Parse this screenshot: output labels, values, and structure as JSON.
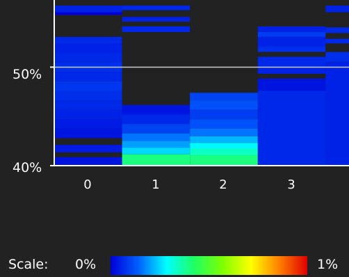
{
  "chart_data": {
    "type": "heatmap",
    "x_ticks": [
      "0",
      "1",
      "2",
      "3"
    ],
    "y_ticks": [
      "50%",
      "40%"
    ],
    "y_range": [
      39.6,
      56.5
    ],
    "reference_line": 50,
    "cells": [
      {
        "col": 0,
        "y0": 55.8,
        "y1": 56.5,
        "v": 0.05
      },
      {
        "col": 0,
        "y0": 55.5,
        "y1": 55.8,
        "v": 0.0
      },
      {
        "col": 0,
        "y0": 53.2,
        "y1": 55.5,
        "v": null
      },
      {
        "col": 0,
        "y0": 52.5,
        "y1": 53.2,
        "v": 0.06
      },
      {
        "col": 0,
        "y0": 51.5,
        "y1": 52.5,
        "v": 0.05
      },
      {
        "col": 0,
        "y0": 50.5,
        "y1": 51.5,
        "v": 0.06
      },
      {
        "col": 0,
        "y0": 49.5,
        "y1": 50.5,
        "v": 0.07
      },
      {
        "col": 0,
        "y0": 48.5,
        "y1": 49.5,
        "v": 0.06
      },
      {
        "col": 0,
        "y0": 47.5,
        "y1": 48.5,
        "v": 0.08
      },
      {
        "col": 0,
        "y0": 46.5,
        "y1": 47.5,
        "v": 0.07
      },
      {
        "col": 0,
        "y0": 45.5,
        "y1": 46.5,
        "v": 0.06
      },
      {
        "col": 0,
        "y0": 44.5,
        "y1": 45.5,
        "v": 0.05
      },
      {
        "col": 0,
        "y0": 43.5,
        "y1": 44.5,
        "v": 0.04
      },
      {
        "col": 0,
        "y0": 42.5,
        "y1": 43.5,
        "v": 0.03
      },
      {
        "col": 0,
        "y0": 41.8,
        "y1": 42.5,
        "v": null
      },
      {
        "col": 0,
        "y0": 41.0,
        "y1": 41.8,
        "v": 0.04
      },
      {
        "col": 0,
        "y0": 40.5,
        "y1": 41.0,
        "v": null
      },
      {
        "col": 0,
        "y0": 39.6,
        "y1": 40.5,
        "v": 0.03
      },
      {
        "col": 1,
        "y0": 56.0,
        "y1": 56.5,
        "v": 0.06
      },
      {
        "col": 1,
        "y0": 55.3,
        "y1": 56.0,
        "v": null
      },
      {
        "col": 1,
        "y0": 54.8,
        "y1": 55.3,
        "v": 0.05
      },
      {
        "col": 1,
        "y0": 54.3,
        "y1": 54.8,
        "v": null
      },
      {
        "col": 1,
        "y0": 53.7,
        "y1": 54.3,
        "v": 0.06
      },
      {
        "col": 1,
        "y0": 46.0,
        "y1": 53.7,
        "v": null
      },
      {
        "col": 1,
        "y0": 45.0,
        "y1": 46.0,
        "v": 0.03
      },
      {
        "col": 1,
        "y0": 44.0,
        "y1": 45.0,
        "v": 0.06
      },
      {
        "col": 1,
        "y0": 43.0,
        "y1": 44.0,
        "v": 0.1
      },
      {
        "col": 1,
        "y0": 42.2,
        "y1": 43.0,
        "v": 0.16
      },
      {
        "col": 1,
        "y0": 41.5,
        "y1": 42.2,
        "v": 0.2
      },
      {
        "col": 1,
        "y0": 40.8,
        "y1": 41.5,
        "v": 0.25
      },
      {
        "col": 1,
        "y0": 39.6,
        "y1": 40.8,
        "v": 0.4
      },
      {
        "col": 2,
        "y0": 47.3,
        "y1": 56.5,
        "v": null
      },
      {
        "col": 2,
        "y0": 46.5,
        "y1": 47.3,
        "v": 0.1
      },
      {
        "col": 2,
        "y0": 45.5,
        "y1": 46.5,
        "v": 0.12
      },
      {
        "col": 2,
        "y0": 44.5,
        "y1": 45.5,
        "v": 0.09
      },
      {
        "col": 2,
        "y0": 43.5,
        "y1": 44.5,
        "v": 0.12
      },
      {
        "col": 2,
        "y0": 42.7,
        "y1": 43.5,
        "v": 0.16
      },
      {
        "col": 2,
        "y0": 42.0,
        "y1": 42.7,
        "v": 0.22
      },
      {
        "col": 2,
        "y0": 41.4,
        "y1": 42.0,
        "v": 0.28
      },
      {
        "col": 2,
        "y0": 40.7,
        "y1": 41.4,
        "v": 0.34
      },
      {
        "col": 2,
        "y0": 39.6,
        "y1": 40.7,
        "v": 0.4
      },
      {
        "col": 3,
        "y0": 53.7,
        "y1": 54.3,
        "v": 0.05
      },
      {
        "col": 3,
        "y0": 53.2,
        "y1": 53.7,
        "v": 0.09
      },
      {
        "col": 3,
        "y0": 52.2,
        "y1": 53.2,
        "v": 0.05
      },
      {
        "col": 3,
        "y0": 51.6,
        "y1": 52.2,
        "v": 0.07
      },
      {
        "col": 3,
        "y0": 51.1,
        "y1": 51.6,
        "v": null
      },
      {
        "col": 3,
        "y0": 50.0,
        "y1": 51.1,
        "v": 0.06
      },
      {
        "col": 3,
        "y0": 49.3,
        "y1": 50.0,
        "v": 0.05
      },
      {
        "col": 3,
        "y0": 48.8,
        "y1": 49.3,
        "v": null
      },
      {
        "col": 3,
        "y0": 47.5,
        "y1": 48.8,
        "v": 0.03
      },
      {
        "col": 3,
        "y0": 39.6,
        "y1": 47.5,
        "v": 0.06
      },
      {
        "col": 4,
        "y0": 55.8,
        "y1": 56.5,
        "v": 0.05
      },
      {
        "col": 4,
        "y0": 54.2,
        "y1": 55.8,
        "v": null
      },
      {
        "col": 4,
        "y0": 53.6,
        "y1": 54.2,
        "v": 0.06
      },
      {
        "col": 4,
        "y0": 53.0,
        "y1": 53.6,
        "v": null
      },
      {
        "col": 4,
        "y0": 52.5,
        "y1": 53.0,
        "v": 0.06
      },
      {
        "col": 4,
        "y0": 51.6,
        "y1": 52.5,
        "v": null
      },
      {
        "col": 4,
        "y0": 50.6,
        "y1": 51.6,
        "v": 0.07
      },
      {
        "col": 4,
        "y0": 39.6,
        "y1": 50.6,
        "v": 0.05
      }
    ]
  },
  "colorbar": {
    "label": "Scale:",
    "min_label": "0%",
    "max_label": "1%",
    "stops": [
      "#0000d8",
      "#0060ff",
      "#00ffff",
      "#20ff60",
      "#80ff00",
      "#ffff00",
      "#ff8000",
      "#e00000"
    ]
  },
  "colors": {
    "background": "#222222",
    "empty_cell": "#222222",
    "axis": "#ffffff",
    "reference_line": "#cccccc"
  }
}
